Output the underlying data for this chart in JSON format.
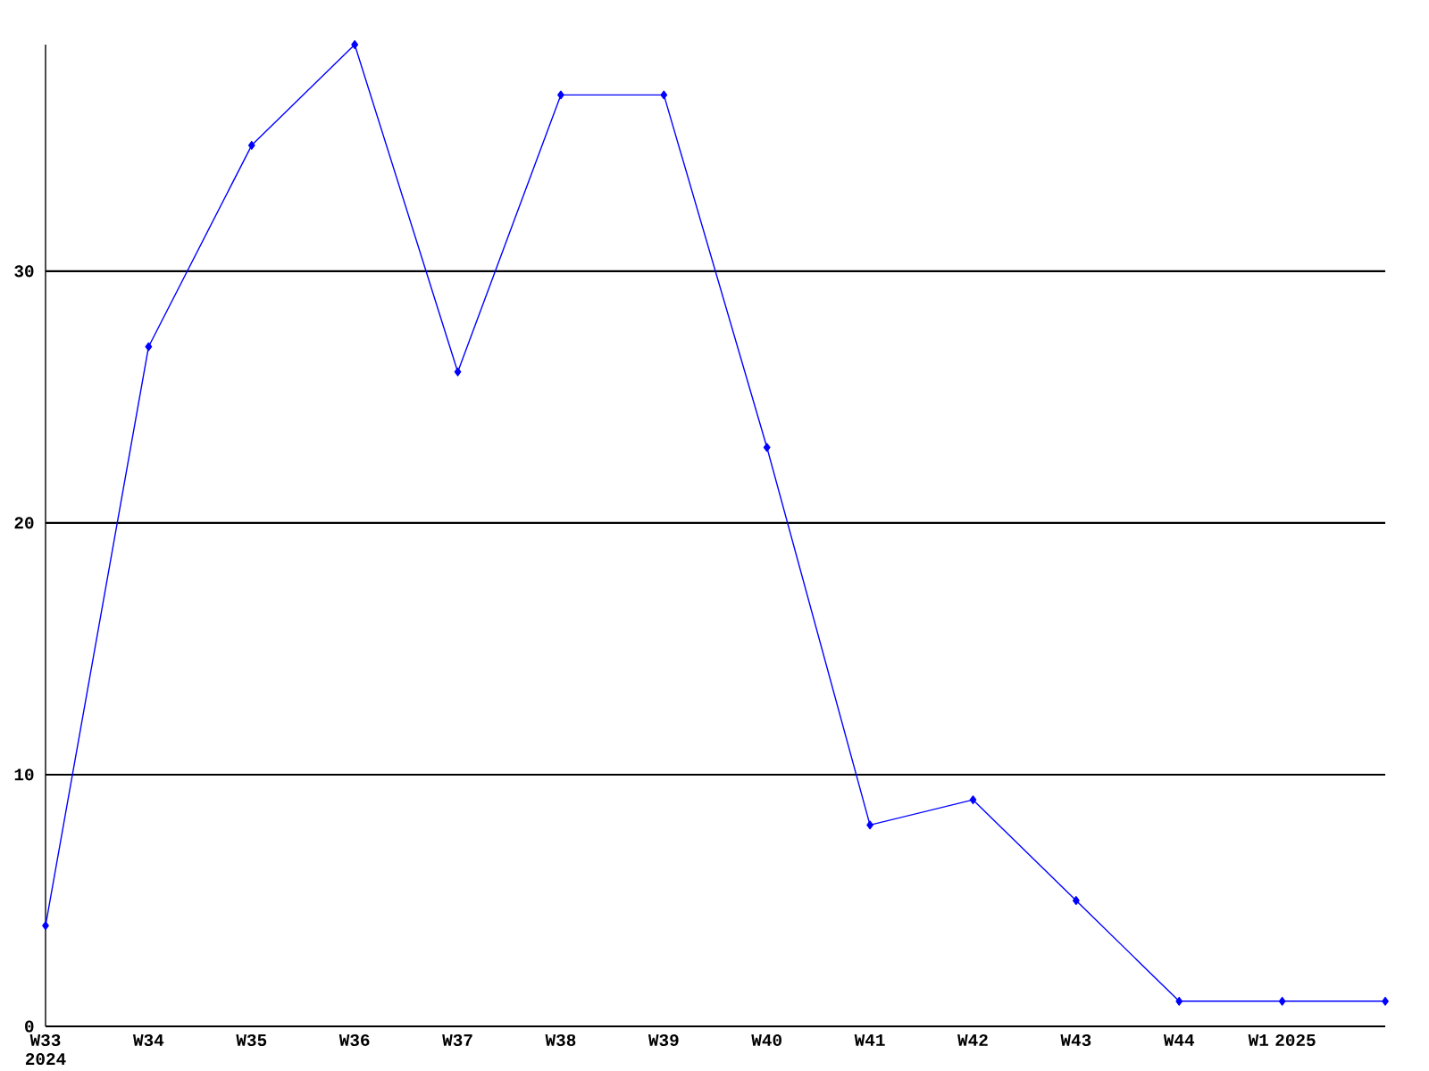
{
  "chart_data": {
    "type": "line",
    "categories": [
      "W33 2024",
      "W34",
      "W35",
      "W36",
      "W37",
      "W38",
      "W39",
      "W40",
      "W41",
      "W42",
      "W43",
      "W44",
      "W1 2025",
      null
    ],
    "values": [
      4,
      27,
      35,
      39,
      26,
      37,
      37,
      23,
      8,
      9,
      5,
      1,
      1,
      1
    ],
    "color": "#0000ff",
    "ylim": [
      0,
      39
    ],
    "yticks": [
      0,
      10,
      20,
      30
    ],
    "grid": "y",
    "marker": "diamond",
    "line_style": "solid"
  }
}
